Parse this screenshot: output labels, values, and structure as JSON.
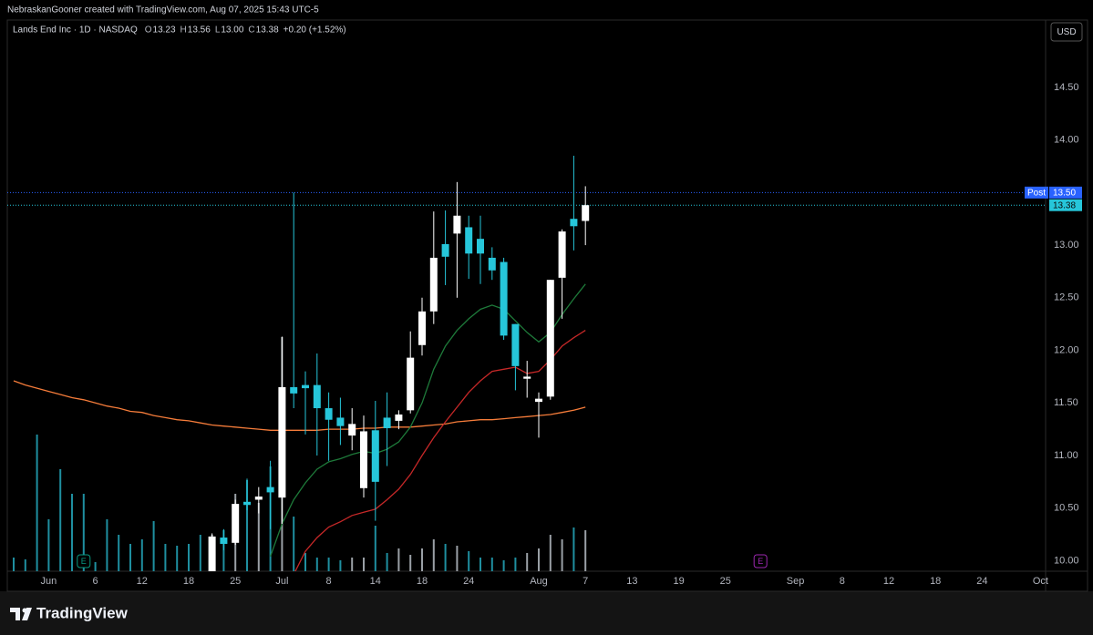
{
  "header": "NebraskanGooner created with TradingView.com, Aug 07, 2025 15:43 UTC-5",
  "brand": "TradingView",
  "currency": "USD",
  "chart_data": {
    "type": "candlestick",
    "legend": {
      "symbol": "Lands End Inc · 1D · NASDAQ",
      "items": [
        {
          "label": "O",
          "value": "13.23"
        },
        {
          "label": "H",
          "value": "13.56"
        },
        {
          "label": "L",
          "value": "13.00"
        },
        {
          "label": "C",
          "value": "13.38"
        }
      ],
      "change": "+0.20 (+1.52%)"
    },
    "x": [
      "05-28",
      "05-29",
      "05-30",
      "06-02",
      "06-03",
      "06-04",
      "06-05",
      "06-06",
      "06-09",
      "06-10",
      "06-11",
      "06-12",
      "06-13",
      "06-16",
      "06-17",
      "06-18",
      "06-20",
      "06-23",
      "06-24",
      "06-25",
      "06-26",
      "06-27",
      "06-30",
      "07-01",
      "07-02",
      "07-03",
      "07-07",
      "07-08",
      "07-09",
      "07-10",
      "07-11",
      "07-14",
      "07-15",
      "07-16",
      "07-17",
      "07-18",
      "07-21",
      "07-22",
      "07-23",
      "07-24",
      "07-25",
      "07-28",
      "07-29",
      "07-30",
      "07-31",
      "08-01",
      "08-04",
      "08-05",
      "08-06",
      "08-07"
    ],
    "open": [
      null,
      null,
      null,
      null,
      null,
      null,
      null,
      null,
      null,
      null,
      null,
      null,
      null,
      null,
      null,
      null,
      null,
      9.9,
      10.22,
      10.17,
      10.56,
      10.58,
      10.7,
      10.6,
      11.65,
      11.67,
      11.67,
      11.45,
      11.36,
      11.19,
      10.69,
      11.24,
      11.36,
      11.33,
      11.43,
      12.05,
      12.37,
      13.01,
      13.11,
      13.17,
      13.06,
      12.88,
      12.84,
      12.25,
      11.73,
      11.51,
      11.56,
      12.69,
      13.25,
      13.23
    ],
    "high": [
      null,
      null,
      null,
      null,
      null,
      null,
      null,
      null,
      null,
      null,
      null,
      null,
      null,
      null,
      null,
      null,
      null,
      10.26,
      10.3,
      10.58,
      10.78,
      10.7,
      10.95,
      12.13,
      13.5,
      11.8,
      11.97,
      11.6,
      11.55,
      11.45,
      11.38,
      11.52,
      11.6,
      11.43,
      12.18,
      12.5,
      13.32,
      13.33,
      13.6,
      13.28,
      13.28,
      12.98,
      12.88,
      12.25,
      11.9,
      11.6,
      12.67,
      13.15,
      13.85,
      13.56
    ],
    "low": [
      null,
      null,
      null,
      null,
      null,
      null,
      null,
      null,
      null,
      null,
      null,
      null,
      null,
      null,
      null,
      null,
      null,
      9.85,
      10.1,
      10.15,
      10.48,
      10.45,
      10.3,
      10.35,
      11.45,
      11.2,
      11.0,
      10.95,
      11.1,
      11.05,
      10.6,
      10.38,
      10.9,
      11.25,
      11.4,
      11.95,
      12.25,
      12.62,
      12.5,
      12.68,
      12.63,
      12.67,
      12.1,
      11.62,
      11.55,
      11.17,
      11.53,
      12.3,
      12.95,
      13.0
    ],
    "close": [
      null,
      null,
      null,
      null,
      null,
      null,
      null,
      null,
      null,
      null,
      null,
      null,
      null,
      null,
      null,
      null,
      null,
      10.23,
      10.16,
      10.54,
      10.53,
      10.61,
      10.65,
      11.65,
      11.59,
      11.64,
      11.45,
      11.34,
      11.28,
      11.3,
      11.23,
      10.75,
      11.26,
      11.39,
      11.93,
      12.37,
      12.88,
      12.89,
      13.28,
      12.92,
      12.92,
      12.76,
      12.14,
      11.85,
      11.75,
      11.54,
      12.67,
      13.13,
      13.18,
      13.38
    ],
    "up_color": "#ffffff",
    "down_color": "#26c6da",
    "volume": [
      15,
      13,
      150,
      57,
      112,
      85,
      85,
      10,
      57,
      40,
      30,
      35,
      55,
      30,
      28,
      30,
      40,
      40,
      45,
      85,
      100,
      75,
      115,
      257,
      60,
      20,
      15,
      15,
      12,
      15,
      15,
      50,
      20,
      25,
      18,
      25,
      35,
      30,
      28,
      22,
      15,
      15,
      12,
      15,
      20,
      25,
      40,
      35,
      48,
      45
    ],
    "lines": [
      {
        "color": "#f57c3a",
        "values": [
          11.71,
          11.67,
          11.64,
          11.61,
          11.58,
          11.55,
          11.53,
          11.5,
          11.47,
          11.45,
          11.42,
          11.41,
          11.38,
          11.36,
          11.34,
          11.33,
          11.31,
          11.29,
          11.28,
          11.27,
          11.26,
          11.25,
          11.24,
          11.24,
          11.24,
          11.24,
          11.24,
          11.25,
          11.25,
          11.25,
          11.26,
          11.26,
          11.27,
          11.27,
          11.27,
          11.28,
          11.29,
          11.3,
          11.32,
          11.33,
          11.34,
          11.34,
          11.35,
          11.36,
          11.37,
          11.38,
          11.39,
          11.41,
          11.43,
          11.46
        ]
      },
      {
        "color": "#1e7a3a",
        "values": [
          null,
          null,
          null,
          null,
          null,
          null,
          null,
          null,
          null,
          null,
          null,
          null,
          null,
          null,
          null,
          null,
          null,
          null,
          null,
          null,
          null,
          null,
          10.04,
          10.35,
          10.58,
          10.74,
          10.87,
          10.94,
          10.97,
          11.01,
          11.04,
          11.02,
          11.06,
          11.13,
          11.27,
          11.5,
          11.82,
          12.04,
          12.19,
          12.3,
          12.39,
          12.43,
          12.39,
          12.28,
          12.17,
          12.08,
          12.17,
          12.34,
          12.49,
          12.63
        ]
      },
      {
        "color": "#c62828",
        "values": [
          null,
          null,
          null,
          null,
          null,
          null,
          null,
          null,
          null,
          null,
          null,
          null,
          null,
          null,
          null,
          null,
          null,
          null,
          null,
          null,
          null,
          null,
          null,
          null,
          9.87,
          10.09,
          10.22,
          10.32,
          10.37,
          10.43,
          10.46,
          10.49,
          10.58,
          10.68,
          10.82,
          11.0,
          11.17,
          11.32,
          11.46,
          11.6,
          11.71,
          11.8,
          11.82,
          11.84,
          11.78,
          11.8,
          11.91,
          12.04,
          12.12,
          12.19
        ]
      }
    ],
    "price_lines": [
      {
        "tag": "Post",
        "value": 13.5,
        "value_label": "13.50",
        "color": "#2962ff",
        "text_color": "#ffffff"
      },
      {
        "value": 13.38,
        "value_label": "13.38",
        "color": "#26c6da",
        "text_color": "#0b0b0b"
      }
    ],
    "events": [
      {
        "date": "06-05",
        "label": "E",
        "color": "#089981"
      },
      {
        "date": "08-28",
        "label": "E",
        "color": "#9c27b0"
      }
    ],
    "ylim": [
      9.9,
      15.14
    ],
    "yticks": [
      {
        "value": 10,
        "label": "10.00"
      },
      {
        "value": 10.5,
        "label": "10.50"
      },
      {
        "value": 11,
        "label": "11.00"
      },
      {
        "value": 11.5,
        "label": "11.50"
      },
      {
        "value": 12,
        "label": "12.00"
      },
      {
        "value": 12.5,
        "label": "12.50"
      },
      {
        "value": 13,
        "label": "13.00"
      },
      {
        "value": 13.5,
        "label": "13.50"
      },
      {
        "value": 14,
        "label": "14.00"
      },
      {
        "value": 14.5,
        "label": "14.50"
      }
    ],
    "xticks": [
      {
        "value": "06-02",
        "label": "Jun"
      },
      {
        "value": "06-06",
        "label": "6"
      },
      {
        "value": "06-12",
        "label": "12"
      },
      {
        "value": "06-18",
        "label": "18"
      },
      {
        "value": "06-25",
        "label": "25"
      },
      {
        "value": "07-01",
        "label": "Jul"
      },
      {
        "value": "07-08",
        "label": "8"
      },
      {
        "value": "07-14",
        "label": "14"
      },
      {
        "value": "07-18",
        "label": "18"
      },
      {
        "value": "07-24",
        "label": "24"
      },
      {
        "value": "08-01",
        "label": "Aug"
      },
      {
        "value": "08-07",
        "label": "7"
      },
      {
        "value": "08-13",
        "label": "13"
      },
      {
        "value": "08-19",
        "label": "19"
      },
      {
        "value": "08-25",
        "label": "25"
      },
      {
        "value": "09-02",
        "label": "Sep"
      },
      {
        "value": "09-08",
        "label": "8"
      },
      {
        "value": "09-12",
        "label": "12"
      },
      {
        "value": "09-18",
        "label": "18"
      },
      {
        "value": "09-24",
        "label": "24"
      },
      {
        "value": "10-01",
        "label": "Oct"
      }
    ],
    "grid": false
  }
}
